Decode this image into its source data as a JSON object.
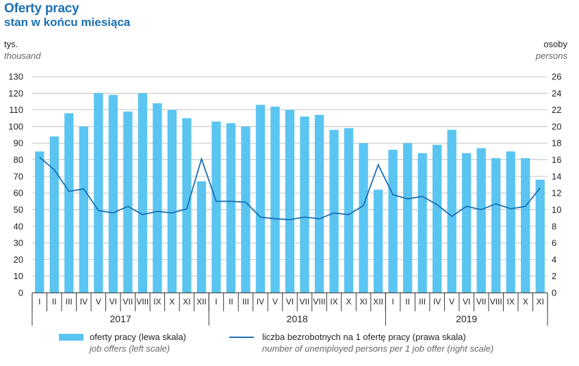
{
  "header": {
    "title": "Oferty pracy",
    "subtitle": "stan w końcu miesiąca"
  },
  "units": {
    "left_pl": "tys.",
    "left_en": "thousand",
    "right_pl": "osoby",
    "right_en": "persons"
  },
  "colors": {
    "bars": "#5bc5f2",
    "line": "#1a6fb3",
    "title": "#1a6fb3",
    "grid": "#b5b5b5"
  },
  "legend": {
    "bars_pl": "oferty pracy (lewa skala)",
    "bars_en": "job offers (left scale)",
    "line_pl": "liczba bezrobotnych na 1 ofertę pracy (prawa skala)",
    "line_en": "number of unemployed persons per 1 job offer (right scale)"
  },
  "chart_data": {
    "type": "bar",
    "title": "Oferty pracy",
    "subtitle": "stan w końcu miesiąca",
    "ylabel_left": "tys. / thousand",
    "ylabel_right": "osoby / persons",
    "ylim_left": [
      0,
      130
    ],
    "ylim_right": [
      0,
      26
    ],
    "yticks_left": [
      0,
      10,
      20,
      30,
      40,
      50,
      60,
      70,
      80,
      90,
      100,
      110,
      120,
      130
    ],
    "yticks_right": [
      0,
      2,
      4,
      6,
      8,
      10,
      12,
      14,
      16,
      18,
      20,
      22,
      24,
      26
    ],
    "grid": true,
    "years": [
      {
        "label": "2017",
        "months": 12
      },
      {
        "label": "2018",
        "months": 12
      },
      {
        "label": "2019",
        "months": 11
      }
    ],
    "categories": [
      "I",
      "II",
      "III",
      "IV",
      "V",
      "VI",
      "VII",
      "VIII",
      "IX",
      "X",
      "XI",
      "XII",
      "I",
      "II",
      "III",
      "IV",
      "V",
      "VI",
      "VII",
      "VIII",
      "IX",
      "X",
      "XI",
      "XII",
      "I",
      "II",
      "III",
      "IV",
      "V",
      "VI",
      "VII",
      "VIII",
      "IX",
      "X",
      "XI"
    ],
    "series": [
      {
        "name": "oferty pracy (lewa skala)",
        "type": "bar",
        "axis": "left",
        "values": [
          85,
          94,
          108,
          100,
          120,
          119,
          109,
          120,
          114,
          110,
          105,
          67,
          103,
          102,
          100,
          113,
          112,
          110,
          106,
          107,
          98,
          99,
          90,
          62,
          86,
          90,
          84,
          89,
          98,
          84,
          87,
          81,
          85,
          81,
          68
        ]
      },
      {
        "name": "liczba bezrobotnych na 1 ofertę pracy (prawa skala)",
        "type": "line",
        "axis": "right",
        "values": [
          16.3,
          14.8,
          12.2,
          12.5,
          9.9,
          9.6,
          10.4,
          9.4,
          9.8,
          9.6,
          10.1,
          16.1,
          11.0,
          11.0,
          10.9,
          9.1,
          8.9,
          8.8,
          9.1,
          8.9,
          9.6,
          9.4,
          10.5,
          15.4,
          11.8,
          11.3,
          11.6,
          10.6,
          9.2,
          10.4,
          10.0,
          10.7,
          10.1,
          10.4,
          12.6
        ]
      }
    ]
  }
}
